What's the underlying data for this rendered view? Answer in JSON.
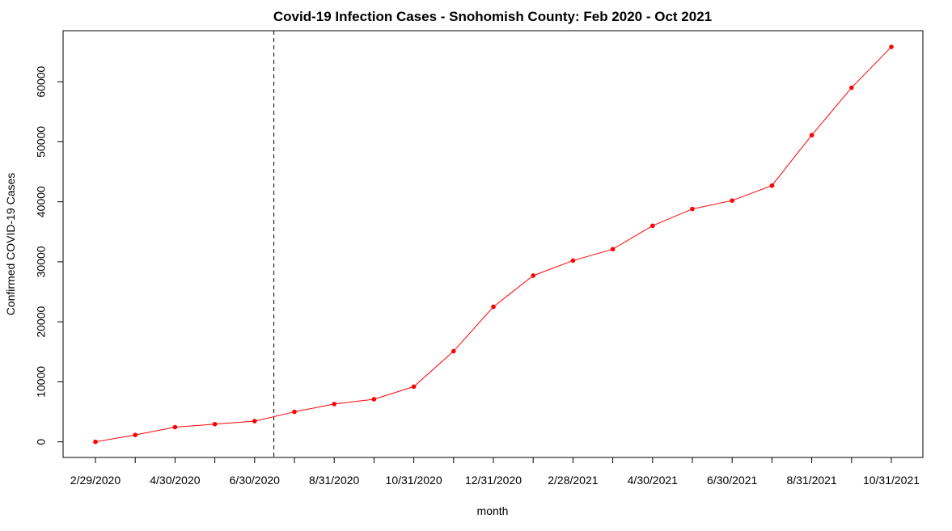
{
  "chart_data": {
    "type": "line",
    "title": "Covid-19 Infection Cases - Snohomish County: Feb 2020 - Oct 2021",
    "xlabel": "month",
    "ylabel": "Confirmed COVID-19 Cases",
    "x": [
      "2/29/2020",
      "3/31/2020",
      "4/30/2020",
      "5/31/2020",
      "6/30/2020",
      "7/31/2020",
      "8/31/2020",
      "9/30/2020",
      "10/31/2020",
      "11/30/2020",
      "12/31/2020",
      "1/31/2021",
      "2/28/2021",
      "3/31/2021",
      "4/30/2021",
      "5/31/2021",
      "6/30/2021",
      "7/31/2021",
      "8/31/2021",
      "9/30/2021",
      "10/31/2021"
    ],
    "x_tick_labels": [
      "2/29/2020",
      "4/30/2020",
      "6/30/2020",
      "8/31/2020",
      "10/31/2020",
      "12/31/2020",
      "2/28/2021",
      "4/30/2021",
      "6/30/2021",
      "8/31/2021",
      "10/31/2021"
    ],
    "series": [
      {
        "values": [
          0,
          1150,
          2450,
          2950,
          3450,
          5000,
          6300,
          7100,
          9200,
          15100,
          22500,
          27700,
          30200,
          32100,
          36000,
          38800,
          40200,
          42700,
          51100,
          59000,
          65800
        ],
        "color": "#ff0000",
        "marker": "filled-circle"
      }
    ],
    "y_ticks": [
      0,
      10000,
      20000,
      30000,
      40000,
      50000,
      60000
    ],
    "y_tick_labels": [
      "0",
      "10000",
      "20000",
      "30000",
      "40000",
      "50000",
      "60000"
    ],
    "ylim": [
      -2600,
      68500
    ],
    "vertical_reference_line": {
      "x": "7/15/2020",
      "style": "dashed",
      "color": "#000000"
    },
    "grid": false,
    "legend": "none"
  }
}
